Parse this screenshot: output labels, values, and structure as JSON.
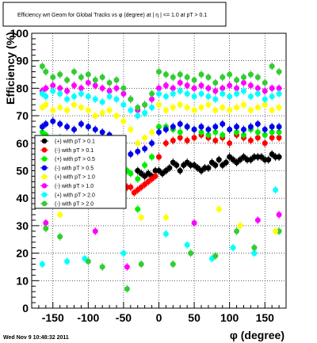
{
  "chart_data": {
    "type": "scatter",
    "title": "Efficiency wrt Geom for Global Tracks vs φ (degree) at |  η | <= 1.0 at pT > 0.1",
    "xlabel": "φ (degree)",
    "ylabel": "Efficiency (%)",
    "xlim": [
      -180,
      180
    ],
    "ylim": [
      0,
      100
    ],
    "x_ticks": [
      -150,
      -100,
      -50,
      0,
      50,
      100,
      150
    ],
    "x_tick_labels": [
      "-150",
      "-100",
      "-50",
      "0",
      "50",
      "100",
      "150"
    ],
    "y_ticks": [
      0,
      10,
      20,
      30,
      40,
      50,
      60,
      70,
      80,
      90,
      100
    ],
    "y_tick_labels": [
      "0",
      "10",
      "20",
      "30",
      "40",
      "50",
      "60",
      "70",
      "80",
      "90",
      "100"
    ],
    "grid": true,
    "legend_position": "left-center",
    "series": [
      {
        "name": "(+) with pT > 0.1",
        "color": "#000000",
        "x": [
          -30,
          -25,
          -20,
          -15,
          -10,
          -5,
          0,
          5,
          10,
          15,
          20,
          25,
          30,
          35,
          40,
          45,
          50,
          55,
          60,
          65,
          70,
          75,
          80,
          85,
          90,
          95,
          100,
          105,
          110,
          115,
          120,
          125,
          130,
          135,
          140,
          145,
          150,
          155,
          160,
          165,
          170
        ],
        "y": [
          50,
          49,
          48,
          49,
          48,
          50,
          50,
          49,
          50,
          51,
          53,
          52,
          50,
          52,
          53,
          52,
          52,
          51,
          50,
          51,
          51,
          53,
          52,
          54,
          52,
          53,
          55,
          54,
          53,
          54,
          55,
          54,
          54,
          55,
          55,
          55,
          54,
          54,
          56,
          55,
          55
        ]
      },
      {
        "name": "(-) with pT > 0.1",
        "color": "#ff0000",
        "x": [
          -165,
          -160,
          -150,
          -140,
          -130,
          -120,
          -110,
          -100,
          -90,
          -80,
          -70,
          -60,
          -55,
          -50,
          -45,
          -40,
          -35,
          -30,
          -25,
          -20,
          -15,
          -10,
          -5,
          0,
          10,
          20,
          30,
          40,
          50,
          60,
          70,
          80,
          90,
          100,
          110,
          120,
          130,
          140,
          150,
          160,
          170
        ],
        "y": [
          60,
          58,
          57,
          56,
          57,
          58,
          55,
          56,
          55,
          54,
          52,
          50,
          48,
          46,
          44,
          44,
          42,
          43,
          44,
          45,
          46,
          47,
          48,
          55,
          60,
          61,
          62,
          61,
          62,
          63,
          62,
          61,
          62,
          60,
          63,
          62,
          61,
          62,
          60,
          62,
          62
        ]
      },
      {
        "name": "(+) with pT > 0.5",
        "color": "#00ee00",
        "x": [
          -165,
          -160,
          -150,
          -140,
          -130,
          -120,
          -110,
          -100,
          -90,
          -80,
          -70,
          -60,
          -55,
          -50,
          -45,
          -40,
          -30,
          -20,
          -10,
          0,
          10,
          20,
          30,
          40,
          50,
          60,
          70,
          80,
          90,
          100,
          110,
          120,
          130,
          140,
          150,
          160,
          170
        ],
        "y": [
          64,
          63,
          61,
          62,
          60,
          61,
          60,
          62,
          60,
          59,
          58,
          57,
          56,
          55,
          50,
          49,
          47,
          52,
          55,
          66,
          66,
          65,
          64,
          66,
          65,
          64,
          63,
          64,
          63,
          65,
          64,
          63,
          65,
          64,
          63,
          64,
          64
        ]
      },
      {
        "name": "(-) with pT > 0.5",
        "color": "#0000ee",
        "x": [
          -165,
          -160,
          -150,
          -140,
          -130,
          -120,
          -110,
          -100,
          -90,
          -80,
          -70,
          -60,
          -50,
          -40,
          -30,
          -20,
          -10,
          0,
          10,
          20,
          30,
          40,
          50,
          60,
          70,
          80,
          90,
          100,
          110,
          120,
          130,
          140,
          150,
          160,
          170
        ],
        "y": [
          66,
          67,
          68,
          67,
          66,
          65,
          67,
          66,
          65,
          64,
          63,
          60,
          58,
          56,
          57,
          58,
          60,
          64,
          65,
          66,
          67,
          66,
          65,
          66,
          65,
          66,
          67,
          65,
          66,
          65,
          66,
          67,
          65,
          66,
          66
        ]
      },
      {
        "name": "(+) with pT > 1.0",
        "color": "#ffff00",
        "x": [
          -165,
          -160,
          -150,
          -140,
          -130,
          -120,
          -110,
          -100,
          -90,
          -80,
          -70,
          -60,
          -50,
          -40,
          -30,
          -20,
          -10,
          0,
          10,
          20,
          30,
          40,
          50,
          60,
          70,
          80,
          90,
          100,
          110,
          120,
          130,
          140,
          150,
          160,
          170
        ],
        "y": [
          73,
          74,
          72,
          73,
          72,
          74,
          73,
          72,
          70,
          71,
          72,
          70,
          68,
          65,
          60,
          62,
          64,
          74,
          72,
          73,
          74,
          73,
          72,
          73,
          74,
          72,
          73,
          72,
          73,
          74,
          72,
          73,
          74,
          72,
          73
        ]
      },
      {
        "name": "(-) with pT > 1.0",
        "color": "#ff00ff",
        "x": [
          -165,
          -160,
          -150,
          -140,
          -130,
          -120,
          -110,
          -100,
          -90,
          -80,
          -70,
          -60,
          -50,
          -40,
          -30,
          -20,
          -10,
          0,
          10,
          20,
          30,
          40,
          50,
          60,
          70,
          80,
          90,
          100,
          110,
          120,
          130,
          140,
          150,
          160,
          170
        ],
        "y": [
          79,
          80,
          81,
          80,
          79,
          81,
          80,
          82,
          81,
          80,
          79,
          80,
          78,
          76,
          72,
          74,
          76,
          80,
          81,
          80,
          82,
          81,
          80,
          81,
          80,
          79,
          80,
          81,
          80,
          82,
          81,
          80,
          79,
          80,
          80
        ]
      },
      {
        "name": "(+) with pT > 2.0",
        "color": "#00ffff",
        "x": [
          -165,
          -160,
          -150,
          -140,
          -130,
          -120,
          -110,
          -100,
          -90,
          -80,
          -70,
          -60,
          -50,
          -40,
          -30,
          -20,
          -10,
          0,
          10,
          20,
          30,
          40,
          50,
          60,
          70,
          80,
          90,
          100,
          110,
          120,
          130,
          140,
          150,
          160,
          170
        ],
        "y": [
          78,
          77,
          79,
          78,
          76,
          77,
          78,
          77,
          76,
          75,
          77,
          76,
          74,
          72,
          70,
          71,
          73,
          78,
          77,
          78,
          79,
          78,
          77,
          78,
          77,
          76,
          78,
          77,
          78,
          79,
          77,
          78,
          76,
          77,
          78
        ]
      },
      {
        "name": "(-) with pT > 2.0",
        "color": "#33cc33",
        "x": [
          -165,
          -160,
          -150,
          -140,
          -130,
          -120,
          -110,
          -100,
          -90,
          -80,
          -70,
          -60,
          -50,
          -40,
          -30,
          -20,
          -10,
          0,
          10,
          20,
          30,
          40,
          50,
          60,
          70,
          80,
          90,
          100,
          110,
          120,
          130,
          140,
          150,
          160,
          170
        ],
        "y": [
          88,
          86,
          84,
          85,
          83,
          86,
          84,
          85,
          83,
          84,
          82,
          83,
          80,
          76,
          73,
          74,
          78,
          86,
          85,
          84,
          85,
          84,
          83,
          85,
          84,
          82,
          84,
          85,
          83,
          84,
          85,
          84,
          82,
          88,
          86
        ]
      }
    ],
    "outliers": [
      {
        "series": 5,
        "x": -160,
        "y": 31
      },
      {
        "series": 5,
        "x": -90,
        "y": 28
      },
      {
        "series": 5,
        "x": -45,
        "y": 15
      },
      {
        "series": 5,
        "x": 50,
        "y": 31
      },
      {
        "series": 5,
        "x": 140,
        "y": 32
      },
      {
        "series": 5,
        "x": 170,
        "y": 34
      },
      {
        "series": 6,
        "x": -165,
        "y": 16
      },
      {
        "series": 6,
        "x": -130,
        "y": 17
      },
      {
        "series": 6,
        "x": -105,
        "y": 18
      },
      {
        "series": 6,
        "x": -50,
        "y": 20
      },
      {
        "series": 6,
        "x": 10,
        "y": 27
      },
      {
        "series": 6,
        "x": 40,
        "y": 23
      },
      {
        "series": 6,
        "x": 75,
        "y": 18
      },
      {
        "series": 6,
        "x": 105,
        "y": 22
      },
      {
        "series": 6,
        "x": 135,
        "y": 20
      },
      {
        "series": 6,
        "x": 165,
        "y": 43
      },
      {
        "series": 7,
        "x": -160,
        "y": 29
      },
      {
        "series": 7,
        "x": -140,
        "y": 26
      },
      {
        "series": 7,
        "x": -100,
        "y": 17
      },
      {
        "series": 7,
        "x": -80,
        "y": 15
      },
      {
        "series": 7,
        "x": -45,
        "y": 7
      },
      {
        "series": 7,
        "x": -25,
        "y": 16
      },
      {
        "series": 7,
        "x": 20,
        "y": 16
      },
      {
        "series": 7,
        "x": 45,
        "y": 20
      },
      {
        "series": 7,
        "x": 80,
        "y": 19
      },
      {
        "series": 7,
        "x": 110,
        "y": 28
      },
      {
        "series": 7,
        "x": 135,
        "y": 22
      },
      {
        "series": 7,
        "x": 170,
        "y": 28
      },
      {
        "series": 4,
        "x": -140,
        "y": 34
      },
      {
        "series": 4,
        "x": -25,
        "y": 33
      },
      {
        "series": 4,
        "x": 10,
        "y": 33
      },
      {
        "series": 4,
        "x": 85,
        "y": 36
      },
      {
        "series": 4,
        "x": 115,
        "y": 30
      },
      {
        "series": 4,
        "x": 165,
        "y": 28
      },
      {
        "series": 2,
        "x": -85,
        "y": 40
      },
      {
        "series": 2,
        "x": -60,
        "y": 38
      },
      {
        "series": 2,
        "x": -30,
        "y": 36
      }
    ],
    "footer_date": "Wed Nov  9 10:48:32 2011"
  }
}
